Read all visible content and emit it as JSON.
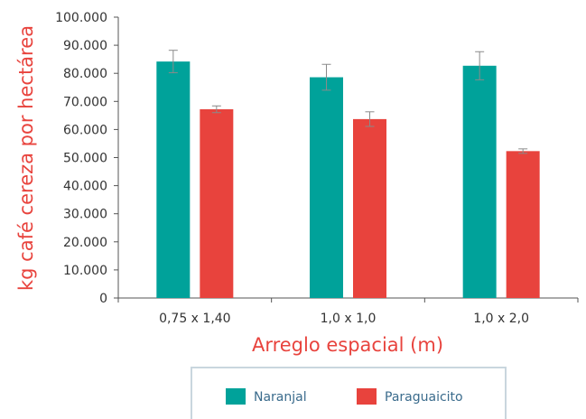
{
  "chart_data": {
    "type": "bar",
    "title": "",
    "xlabel": "Arreglo espacial (m)",
    "ylabel": "kg café cereza por hectárea",
    "ylim": [
      0,
      100000
    ],
    "yticks": [
      "0",
      "10.000",
      "20.000",
      "30.000",
      "40.000",
      "50.000",
      "60.000",
      "70.000",
      "80.000",
      "90.000",
      "100.000"
    ],
    "categories": [
      "0,75 x 1,40",
      "1,0 x 1,0",
      "1,0 x 2,0"
    ],
    "series": [
      {
        "name": "Naranjal",
        "color": "#00a29a",
        "values": [
          84200,
          78600,
          82700
        ],
        "error": [
          4000,
          4600,
          5000
        ]
      },
      {
        "name": "Paraguaicito",
        "color": "#e8433d",
        "values": [
          67200,
          63700,
          52300
        ],
        "error": [
          1200,
          2600,
          800
        ]
      }
    ],
    "grid": false,
    "legend": "bottom"
  }
}
